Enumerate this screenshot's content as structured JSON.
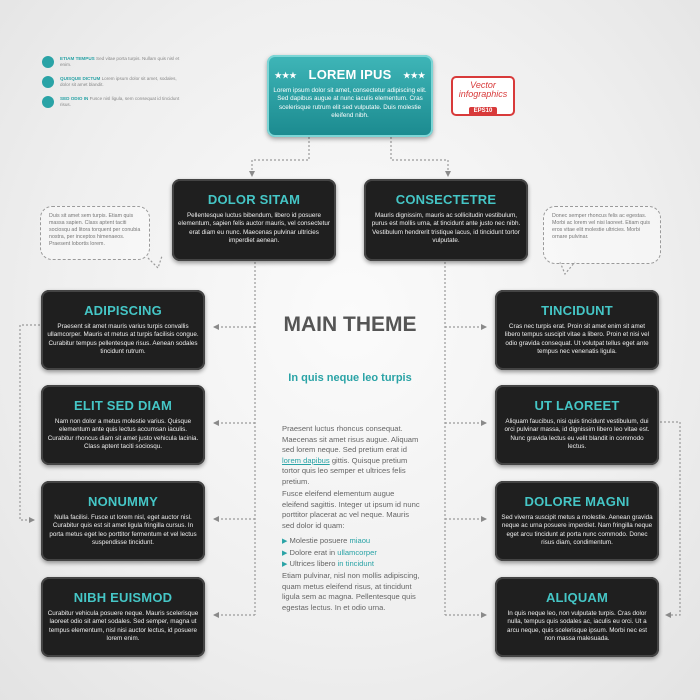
{
  "legend": [
    {
      "lead": "ETIAM TEMPUS",
      "rest": "Sed vitae porta turpis. Nullam quis nisl et enim."
    },
    {
      "lead": "QUISQUE DICTUM",
      "rest": "Lorem ipsum dolor sit amet, sodales, dolor sit amet blandit."
    },
    {
      "lead": "SED ODIO IN",
      "rest": "Fusce nisl ligula, sem consequat id tincidunt risus."
    }
  ],
  "badge": {
    "line1": "Vector",
    "line2": "infographics",
    "line3": "EPS10"
  },
  "top": {
    "stars": "★★★",
    "title": "LOREM IPUS",
    "body": "Lorem ipsum dolor sit amet, consectetur adipiscing elit. Sed dapibus augue at nunc iaculis elementum. Cras scelerisque rutrum elit sed vulputate. Duis molestie eleifend nibh."
  },
  "level2": [
    {
      "title": "DOLOR SITAM",
      "body": "Pellentesque luctus bibendum, libero id posuere elementum, sapien felis auctor mauris, vel consectetur erat diam eu nunc. Maecenas pulvinar ultricies imperdiet aenean."
    },
    {
      "title": "CONSECTETRE",
      "body": "Mauris dignissim, mauris ac sollicitudin vestibulum, purus est mollis urna, at tincidunt ante justo nec nibh. Vestibulum hendrerit tristique lacus, id tincidunt tortor vulputate."
    }
  ],
  "bubbles": [
    "Duis sit amet sem turpis. Etiam quis massa sapien. Class aptent taciti sociosqu ad litora torquent per conubia nostra, per inceptos himenaeos. Praesent lobortis lorem.",
    "Donec semper rhoncus felis ac egestas. Morbi ac lorem vel nisi laoreet. Etiam quis eros vitae elit molestie ultricies. Morbi ornare pulvinar."
  ],
  "left": [
    {
      "title": "ADIPISCING",
      "body": "Praesent sit amet mauris varius turpis convallis ullamcorper. Mauris et metus at turpis facilisis congue. Curabitur tempus pellentesque risus. Aenean sodales tincidunt rutrum."
    },
    {
      "title": "ELIT SED DIAM",
      "body": "Nam non dolor a metus molestie varius. Quisque elementum ante quis lectus accumsan iaculis. Curabitur rhoncus diam sit amet justo vehicula lacinia. Class aptent taciti sociosqu."
    },
    {
      "title": "NONUMMY",
      "body": "Nulla facilisi. Fusce ut lorem nisl, eget auctor nisl. Curabitur quis est sit amet ligula fringilla cursus. In porta metus eget leo porttitor fermentum et vel lectus suspendisse tincidunt."
    },
    {
      "title": "NIBH EUISMOD",
      "body": "Curabitur vehicula posuere neque. Mauris scelerisque laoreet odio sit amet sodales. Sed semper, magna ut tempus elementum, nisl nisi auctor lectus, id posuere lorem enim."
    }
  ],
  "right": [
    {
      "title": "TINCIDUNT",
      "body": "Cras nec turpis erat. Proin sit amet enim sit amet libero tempus suscipit vitae a libero. Proin et nisi vel odio gravida consequat. Ut volutpat tellus eget ante tempus nec venenatis ligula."
    },
    {
      "title": "UT LAOREET",
      "body": "Aliquam faucibus, nisi quis tincidunt vestibulum, dui orci pulvinar massa, id dignissim libero leo vitae est. Nunc gravida lectus eu velit blandit in commodo lectus."
    },
    {
      "title": "DOLORE MAGNI",
      "body": "Sed viverra suscipit metus a molestie. Aenean gravida neque ac urna posuere imperdiet. Nam fringilla neque eget arcu tincidunt at porta nunc commodo. Donec risus diam, condimentum."
    },
    {
      "title": "ALIQUAM",
      "body": "In quis neque leo, non vulputate turpis. Cras dolor nulla, tempus quis sodales ac, iaculis eu orci. Ut a arcu neque, quis scelerisque ipsum. Morbi nec est non massa malesuada."
    }
  ],
  "center": {
    "title": "MAIN THEME",
    "subtitle": "In quis neque leo turpis",
    "p1_a": "Praesent luctus rhoncus consequat. Maecenas sit amet risus augue. Aliquam sed lorem neque. Sed pretium erat id ",
    "p1_link": "lorem dapibus",
    "p1_b": " gittis. Quisque pretium tortor quis leo semper et ultrices felis pretium.",
    "p2": "Fusce eleifend elementum augue eleifend sagittis. Integer ut ipsum id nunc porttitor placerat ac vel neque. Mauris sed dolor id quam:",
    "bullets": [
      {
        "pre": "Molestie posuere ",
        "hl": "miaou"
      },
      {
        "pre": "Dolore erat in ",
        "hl": "ullamcorper"
      },
      {
        "pre": "Ultrices libero ",
        "hl": "in tincidunt"
      }
    ],
    "p3": "Etiam pulvinar, nisl non mollis adipiscing, quam metus eleifend risus, at tincidunt ligula sem ac magna. Pellentesque quis egestas lectus. In et odio urna."
  }
}
